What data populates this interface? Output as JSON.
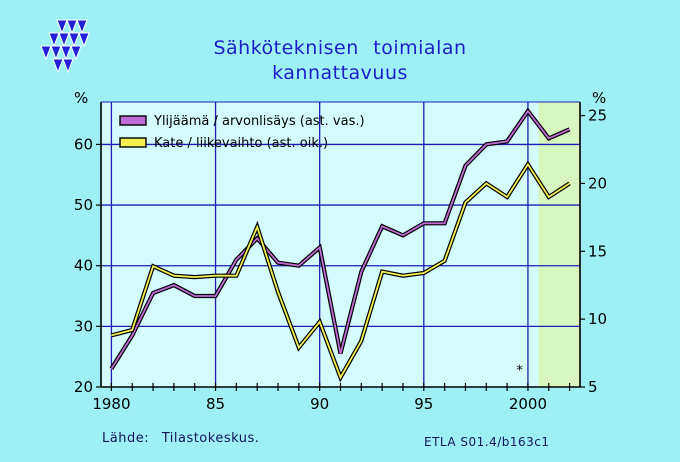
{
  "title_line1": "Sähköteknisen  toimialan",
  "title_line2": "kannattavuus",
  "source": "Lähde:  Tilastokeskus.",
  "code": "ETLA S01.4/b163c1",
  "colors": {
    "background": "#9ff0f6",
    "plot_background": "#d4fbfd",
    "forecast_band": "#d8f7c0",
    "grid": "#1e1eb4",
    "series1": "#c06cd6",
    "series2": "#f4f052",
    "logo": "#2121d6"
  },
  "logo_icon": "triangle-pattern-logo-icon",
  "chart_data": {
    "type": "line",
    "y_left": {
      "unit": "%",
      "range": [
        20,
        67
      ],
      "ticks": [
        20,
        30,
        40,
        50,
        60
      ]
    },
    "y_right": {
      "unit": "%",
      "range": [
        5,
        26
      ],
      "ticks": [
        5,
        10,
        15,
        20,
        25
      ]
    },
    "x": {
      "range": [
        1979.5,
        2002.5
      ],
      "ticks": [
        1980,
        1985,
        1990,
        1995,
        2000
      ],
      "tick_labels": [
        "1980",
        "85",
        "90",
        "95",
        "2000"
      ]
    },
    "forecast_shading": {
      "from": 2000.5,
      "to": 2002.5
    },
    "marker": {
      "symbol": "*",
      "x": 1999.6,
      "axis": "right",
      "y": 6.3
    },
    "legend_position": "top-left",
    "series": [
      {
        "name": "Ylijäämä / arvonlisäys (ast. vas.)",
        "axis": "left",
        "x": [
          1980,
          1981,
          1982,
          1983,
          1984,
          1985,
          1986,
          1987,
          1988,
          1989,
          1990,
          1991,
          1992,
          1993,
          1994,
          1995,
          1996,
          1997,
          1998,
          1999,
          2000,
          2001,
          2002
        ],
        "values": [
          23,
          28.5,
          35.5,
          36.8,
          35,
          35,
          41,
          44.5,
          40.5,
          40,
          43,
          25.5,
          39,
          46.5,
          45,
          47,
          47,
          56.5,
          60,
          60.5,
          65.5,
          61,
          62.5
        ]
      },
      {
        "name": "Kate / liikevaihto (ast. oik.)",
        "axis": "right",
        "x": [
          1980,
          1981,
          1982,
          1983,
          1984,
          1985,
          1986,
          1987,
          1988,
          1989,
          1990,
          1991,
          1992,
          1993,
          1994,
          1995,
          1996,
          1997,
          1998,
          1999,
          2000,
          2001,
          2002
        ],
        "values": [
          8.8,
          9.2,
          13.9,
          13.2,
          13.1,
          13.2,
          13.2,
          16.8,
          12,
          7.9,
          9.8,
          5.7,
          8.4,
          13.5,
          13.2,
          13.4,
          14.3,
          18.6,
          20,
          19,
          21.4,
          19,
          20
        ]
      }
    ]
  }
}
